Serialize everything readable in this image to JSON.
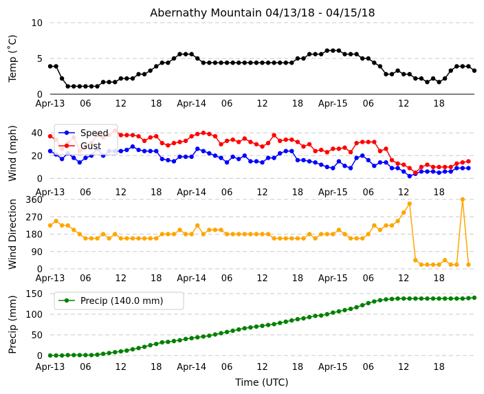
{
  "colors": {
    "grid": "#c8c8c8",
    "axis": "#000000",
    "temp": "#000000",
    "speed": "#0000ff",
    "gust": "#ff0000",
    "direction": "#ffa500",
    "precip": "#008000"
  },
  "chart_data": {
    "type": "line",
    "title": "Abernathy Mountain 04/13/18 - 04/15/18",
    "xlabel": "Time (UTC)",
    "x_start": "2018-04-13 00:00",
    "x_step_hours": 1,
    "x_tick_labels": [
      "Apr-13",
      "06",
      "12",
      "18",
      "Apr-14",
      "06",
      "12",
      "18",
      "Apr-15",
      "06",
      "12",
      "18"
    ],
    "panels": [
      {
        "ylabel": "Temp (˚C)",
        "ylim": [
          0,
          10
        ],
        "yticks": [
          0,
          5,
          10
        ],
        "grid": true,
        "legend": null,
        "series": [
          {
            "key": "temp",
            "values": [
              3.9,
              3.9,
              2.2,
              1.1,
              1.1,
              1.1,
              1.1,
              1.1,
              1.1,
              1.7,
              1.7,
              1.7,
              2.2,
              2.2,
              2.2,
              2.8,
              2.8,
              3.3,
              3.9,
              4.4,
              4.4,
              5.0,
              5.6,
              5.6,
              5.6,
              5.0,
              4.4,
              4.4,
              4.4,
              4.4,
              4.4,
              4.4,
              4.4,
              4.4,
              4.4,
              4.4,
              4.4,
              4.4,
              4.4,
              4.4,
              4.4,
              4.4,
              5.0,
              5.0,
              5.6,
              5.6,
              5.6,
              6.1,
              6.1,
              6.1,
              5.6,
              5.6,
              5.6,
              5.0,
              5.0,
              4.4,
              3.9,
              2.8,
              2.8,
              3.3,
              2.8,
              2.8,
              2.2,
              2.2,
              1.7,
              2.2,
              1.7,
              2.2,
              3.3,
              3.9,
              3.9,
              3.9,
              3.3
            ]
          }
        ]
      },
      {
        "ylabel": "Wind (mph)",
        "ylim": [
          -4,
          48
        ],
        "yticks": [
          0,
          20,
          40
        ],
        "grid": true,
        "legend": "upper left",
        "series": [
          {
            "key": "speed",
            "name": "Speed",
            "values": [
              24,
              21,
              17,
              22,
              18,
              14,
              18,
              20,
              26,
              20,
              24,
              24,
              24,
              25,
              28,
              25,
              24,
              24,
              24,
              17,
              16,
              15,
              19,
              19,
              19,
              26,
              24,
              22,
              20,
              18,
              14,
              19,
              17,
              20,
              15,
              15,
              14,
              18,
              18,
              22,
              24,
              24,
              16,
              16,
              15,
              14,
              12,
              10,
              9,
              15,
              11,
              9,
              18,
              20,
              16,
              11,
              14,
              14,
              9,
              9,
              6,
              2,
              4,
              6,
              6,
              6,
              5,
              6,
              6,
              9,
              9,
              9
            ]
          },
          {
            "key": "gust",
            "name": "Gust",
            "values": [
              37,
              34,
              26,
              31,
              36,
              24,
              28,
              31,
              38,
              36,
              38,
              42,
              38,
              38,
              38,
              37,
              33,
              36,
              37,
              31,
              29,
              31,
              32,
              33,
              37,
              39,
              40,
              39,
              37,
              30,
              33,
              34,
              32,
              35,
              32,
              30,
              28,
              31,
              38,
              33,
              34,
              34,
              32,
              28,
              30,
              24,
              25,
              23,
              26,
              26,
              27,
              23,
              31,
              32,
              32,
              32,
              24,
              26,
              16,
              13,
              12,
              9,
              5,
              10,
              12,
              10,
              10,
              10,
              10,
              13,
              14,
              15
            ]
          }
        ]
      },
      {
        "ylabel": "Wind Direction",
        "ylim": [
          0,
          360
        ],
        "yticks": [
          0,
          90,
          180,
          270,
          360
        ],
        "grid": true,
        "legend": null,
        "series": [
          {
            "key": "direction",
            "values": [
              225,
              248,
              225,
              225,
              202,
              180,
              158,
              158,
              158,
              180,
              158,
              180,
              158,
              158,
              158,
              158,
              158,
              158,
              158,
              180,
              180,
              180,
              202,
              180,
              180,
              225,
              180,
              202,
              202,
              202,
              180,
              180,
              180,
              180,
              180,
              180,
              180,
              180,
              158,
              158,
              158,
              158,
              158,
              158,
              180,
              158,
              180,
              180,
              180,
              202,
              180,
              158,
              158,
              158,
              180,
              225,
              202,
              225,
              225,
              248,
              292,
              338,
              45,
              22,
              22,
              22,
              22,
              45,
              22,
              22,
              360,
              22
            ]
          }
        ]
      },
      {
        "ylabel": "Precip (mm)",
        "ylim": [
          -5,
          155
        ],
        "yticks": [
          0,
          50,
          100,
          150
        ],
        "grid": true,
        "legend": "upper left",
        "series": [
          {
            "key": "precip",
            "name": "Precip (140.0 mm)",
            "values": [
              0,
              0,
              0,
              1,
              1,
              1,
              1,
              1,
              2,
              4,
              6,
              8,
              10,
              12,
              15,
              18,
              21,
              25,
              28,
              32,
              33,
              35,
              37,
              40,
              42,
              44,
              46,
              48,
              51,
              54,
              57,
              60,
              63,
              66,
              68,
              70,
              72,
              74,
              76,
              79,
              82,
              85,
              88,
              90,
              93,
              96,
              97,
              100,
              104,
              107,
              110,
              113,
              117,
              122,
              127,
              131,
              134,
              136,
              137,
              138,
              138,
              138,
              138,
              138,
              138,
              138,
              138,
              138,
              138,
              138,
              138,
              139,
              140
            ]
          }
        ]
      }
    ]
  }
}
